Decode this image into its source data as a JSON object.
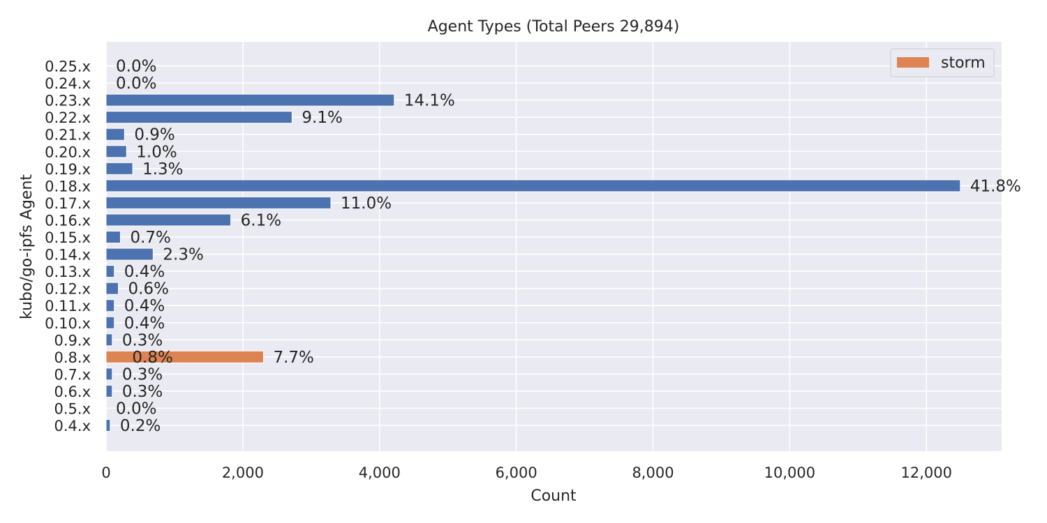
{
  "chart_data": {
    "type": "bar",
    "orientation": "horizontal",
    "title": "Agent Types (Total Peers 29,894)",
    "xlabel": "Count",
    "ylabel": "kubo/go-ipfs Agent",
    "xlim": [
      0,
      13100
    ],
    "xticks": [
      0,
      2000,
      4000,
      6000,
      8000,
      10000,
      12000
    ],
    "xtick_labels": [
      "0",
      "2,000",
      "4,000",
      "6,000",
      "8,000",
      "10,000",
      "12,000"
    ],
    "grid": true,
    "legend_position": "top-right",
    "categories": [
      "0.25.x",
      "0.24.x",
      "0.23.x",
      "0.22.x",
      "0.21.x",
      "0.20.x",
      "0.19.x",
      "0.18.x",
      "0.17.x",
      "0.16.x",
      "0.15.x",
      "0.14.x",
      "0.13.x",
      "0.12.x",
      "0.11.x",
      "0.10.x",
      "0.9.x",
      "0.8.x",
      "0.7.x",
      "0.6.x",
      "0.5.x",
      "0.4.x"
    ],
    "series": [
      {
        "color": "#4c72b0",
        "in_legend": false,
        "values": [
          0,
          0,
          4215,
          2720,
          269,
          299,
          389,
          12496,
          3288,
          1824,
          209,
          688,
          120,
          179,
          120,
          120,
          90,
          239,
          90,
          90,
          0,
          60
        ],
        "labels": [
          "0.0%",
          "0.0%",
          "14.1%",
          "9.1%",
          "0.9%",
          "1.0%",
          "1.3%",
          "41.8%",
          "11.0%",
          "6.1%",
          "0.7%",
          "2.3%",
          "0.4%",
          "0.6%",
          "0.4%",
          "0.4%",
          "0.3%",
          "0.8%",
          "0.3%",
          "0.3%",
          "0.0%",
          "0.2%"
        ]
      },
      {
        "name": "storm",
        "color": "#dd8452",
        "in_legend": true,
        "values": [
          null,
          null,
          null,
          null,
          null,
          null,
          null,
          null,
          null,
          null,
          null,
          null,
          null,
          null,
          null,
          null,
          null,
          2302,
          null,
          null,
          null,
          null
        ],
        "labels": [
          null,
          null,
          null,
          null,
          null,
          null,
          null,
          null,
          null,
          null,
          null,
          null,
          null,
          null,
          null,
          null,
          null,
          "7.7%",
          null,
          null,
          null,
          null
        ]
      }
    ]
  },
  "colors": {
    "plot_background": "#eaeaf2",
    "grid": "#ffffff",
    "text": "#262626"
  }
}
